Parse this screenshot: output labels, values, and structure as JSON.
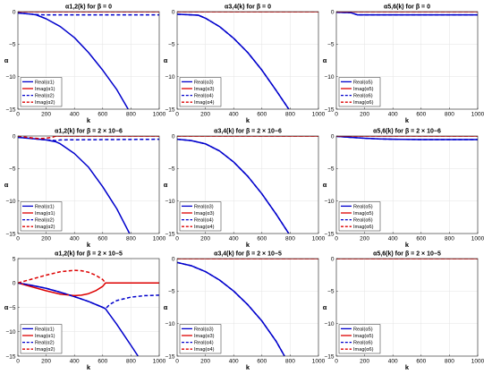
{
  "colors": {
    "real": "#0000cc",
    "imag": "#dd0000"
  },
  "chart_data": [
    {
      "type": "line",
      "title": "α1,2(k) for β = 0",
      "xlabel": "k",
      "ylabel": "α",
      "xlim": [
        0,
        1000
      ],
      "ylim": [
        -15,
        0
      ],
      "xticks": [
        0,
        200,
        400,
        600,
        800,
        1000
      ],
      "yticks": [
        0,
        -5,
        -10,
        -15
      ],
      "legend": {
        "position": "bottom-left",
        "entries": [
          "Real(α1)",
          "Imag(α1)",
          "Real(α2)",
          "Imag(α2)"
        ]
      },
      "series": [
        {
          "name": "Real(α1)",
          "color": "real",
          "dash": false,
          "x": [
            0,
            100,
            130,
            200,
            300,
            400,
            500,
            600,
            700,
            780
          ],
          "y": [
            -0.2,
            -0.4,
            -0.5,
            -1.1,
            -2.3,
            -4.0,
            -6.3,
            -9.0,
            -12.0,
            -15.0
          ]
        },
        {
          "name": "Imag(α1)",
          "color": "imag",
          "dash": false,
          "x": [
            0,
            1000
          ],
          "y": [
            0,
            0
          ]
        },
        {
          "name": "Real(α2)",
          "color": "real",
          "dash": true,
          "x": [
            0,
            100,
            130,
            200,
            1000
          ],
          "y": [
            -0.2,
            -0.4,
            -0.45,
            -0.5,
            -0.5
          ]
        },
        {
          "name": "Imag(α2)",
          "color": "imag",
          "dash": true,
          "x": [
            0,
            1000
          ],
          "y": [
            0,
            0
          ]
        }
      ]
    },
    {
      "type": "line",
      "title": "α3,4(k) for β = 0",
      "xlabel": "k",
      "ylabel": "α",
      "xlim": [
        0,
        1000
      ],
      "ylim": [
        -15,
        0
      ],
      "xticks": [
        0,
        200,
        400,
        600,
        800,
        1000
      ],
      "yticks": [
        0,
        -5,
        -10,
        -15
      ],
      "legend": {
        "position": "bottom-left",
        "entries": [
          "Real(α3)",
          "Imag(α3)",
          "Real(α4)",
          "Imag(α4)"
        ]
      },
      "series": [
        {
          "name": "Real(α3)",
          "color": "real",
          "dash": false,
          "x": [
            0,
            100,
            150,
            200,
            300,
            400,
            500,
            600,
            700,
            790
          ],
          "y": [
            -0.4,
            -0.5,
            -0.55,
            -1.0,
            -2.3,
            -4.1,
            -6.3,
            -9.0,
            -12.1,
            -15.0
          ]
        },
        {
          "name": "Imag(α3)",
          "color": "imag",
          "dash": false,
          "x": [
            0,
            1000
          ],
          "y": [
            0,
            0
          ]
        },
        {
          "name": "Real(α4)",
          "color": "real",
          "dash": true,
          "x": [
            0,
            100,
            150,
            200,
            300,
            400,
            500,
            600,
            700,
            790
          ],
          "y": [
            -0.4,
            -0.5,
            -0.55,
            -1.0,
            -2.3,
            -4.1,
            -6.3,
            -9.0,
            -12.1,
            -15.0
          ]
        },
        {
          "name": "Imag(α4)",
          "color": "imag",
          "dash": true,
          "x": [
            0,
            1000
          ],
          "y": [
            0,
            0
          ]
        }
      ]
    },
    {
      "type": "line",
      "title": "α5,6(k) for β = 0",
      "xlabel": "k",
      "ylabel": "α",
      "xlim": [
        0,
        1000
      ],
      "ylim": [
        -15,
        0
      ],
      "xticks": [
        0,
        200,
        400,
        600,
        800,
        1000
      ],
      "yticks": [
        0,
        -5,
        -10,
        -15
      ],
      "legend": {
        "position": "bottom-left",
        "entries": [
          "Real(α5)",
          "Imag(α5)",
          "Real(α6)",
          "Imag(α6)"
        ]
      },
      "series": [
        {
          "name": "Real(α5)",
          "color": "real",
          "dash": false,
          "x": [
            0,
            100,
            150,
            1000
          ],
          "y": [
            -0.1,
            -0.15,
            -0.5,
            -0.5
          ]
        },
        {
          "name": "Imag(α5)",
          "color": "imag",
          "dash": false,
          "x": [
            0,
            1000
          ],
          "y": [
            0,
            0
          ]
        },
        {
          "name": "Real(α6)",
          "color": "real",
          "dash": true,
          "x": [
            0,
            100,
            150,
            1000
          ],
          "y": [
            -0.1,
            -0.15,
            -0.5,
            -0.5
          ]
        },
        {
          "name": "Imag(α6)",
          "color": "imag",
          "dash": true,
          "x": [
            0,
            1000
          ],
          "y": [
            0,
            0
          ]
        }
      ]
    },
    {
      "type": "line",
      "title": "α1,2(k) for β = 2 × 10−6",
      "xlabel": "k",
      "ylabel": "α",
      "xlim": [
        0,
        1000
      ],
      "ylim": [
        -15,
        0
      ],
      "xticks": [
        0,
        200,
        400,
        600,
        800,
        1000
      ],
      "yticks": [
        0,
        -5,
        -10,
        -15
      ],
      "legend": {
        "position": "bottom-left",
        "entries": [
          "Real(α1)",
          "Imag(α1)",
          "Real(α2)",
          "Imag(α2)"
        ]
      },
      "series": [
        {
          "name": "Real(α1)",
          "color": "real",
          "dash": false,
          "x": [
            0,
            100,
            200,
            270,
            300,
            400,
            500,
            600,
            700,
            790
          ],
          "y": [
            -0.2,
            -0.4,
            -0.6,
            -0.9,
            -1.2,
            -2.7,
            -4.8,
            -7.8,
            -11.2,
            -15.0
          ]
        },
        {
          "name": "Imag(α1)",
          "color": "imag",
          "dash": false,
          "x": [
            0,
            100,
            150,
            200,
            250,
            270,
            1000
          ],
          "y": [
            0,
            0.3,
            0.4,
            0.35,
            0.15,
            0,
            0
          ]
        },
        {
          "name": "Real(α2)",
          "color": "real",
          "dash": true,
          "x": [
            0,
            100,
            200,
            270,
            300,
            1000
          ],
          "y": [
            -0.2,
            -0.4,
            -0.6,
            -0.7,
            -0.6,
            -0.5
          ]
        },
        {
          "name": "Imag(α2)",
          "color": "imag",
          "dash": true,
          "x": [
            0,
            100,
            150,
            200,
            250,
            270,
            1000
          ],
          "y": [
            0,
            -0.3,
            -0.4,
            -0.35,
            -0.15,
            0,
            0
          ]
        }
      ]
    },
    {
      "type": "line",
      "title": "α3,4(k) for β = 2 × 10−6",
      "xlabel": "k",
      "ylabel": "α",
      "xlim": [
        0,
        1000
      ],
      "ylim": [
        -15,
        0
      ],
      "xticks": [
        0,
        200,
        400,
        600,
        800,
        1000
      ],
      "yticks": [
        0,
        -5,
        -10,
        -15
      ],
      "legend": {
        "position": "bottom-left",
        "entries": [
          "Real(α3)",
          "Imag(α3)",
          "Real(α4)",
          "Imag(α4)"
        ]
      },
      "series": [
        {
          "name": "Real(α3)",
          "color": "real",
          "dash": false,
          "x": [
            0,
            100,
            200,
            300,
            400,
            500,
            600,
            700,
            790
          ],
          "y": [
            -0.5,
            -0.7,
            -1.2,
            -2.3,
            -4.0,
            -6.2,
            -8.9,
            -12.0,
            -15.0
          ]
        },
        {
          "name": "Imag(α3)",
          "color": "imag",
          "dash": false,
          "x": [
            0,
            1000
          ],
          "y": [
            0,
            0
          ]
        },
        {
          "name": "Real(α4)",
          "color": "real",
          "dash": true,
          "x": [
            0,
            100,
            200,
            300,
            400,
            500,
            600,
            700,
            790
          ],
          "y": [
            -0.5,
            -0.7,
            -1.2,
            -2.3,
            -4.0,
            -6.2,
            -8.9,
            -12.0,
            -15.0
          ]
        },
        {
          "name": "Imag(α4)",
          "color": "imag",
          "dash": true,
          "x": [
            0,
            1000
          ],
          "y": [
            0,
            0
          ]
        }
      ]
    },
    {
      "type": "line",
      "title": "α5,6(k) for β = 2 × 10−6",
      "xlabel": "k",
      "ylabel": "α",
      "xlim": [
        0,
        1000
      ],
      "ylim": [
        -15,
        0
      ],
      "xticks": [
        0,
        200,
        400,
        600,
        800,
        1000
      ],
      "yticks": [
        0,
        -5,
        -10,
        -15
      ],
      "legend": {
        "position": "bottom-left",
        "entries": [
          "Real(α5)",
          "Imag(α5)",
          "Real(α6)",
          "Imag(α6)"
        ]
      },
      "series": [
        {
          "name": "Real(α5)",
          "color": "real",
          "dash": false,
          "x": [
            0,
            100,
            200,
            300,
            400,
            600,
            800,
            1000
          ],
          "y": [
            -0.05,
            -0.2,
            -0.35,
            -0.45,
            -0.5,
            -0.55,
            -0.55,
            -0.55
          ]
        },
        {
          "name": "Imag(α5)",
          "color": "imag",
          "dash": false,
          "x": [
            0,
            1000
          ],
          "y": [
            0,
            0
          ]
        },
        {
          "name": "Real(α6)",
          "color": "real",
          "dash": true,
          "x": [
            0,
            100,
            200,
            300,
            400,
            600,
            800,
            1000
          ],
          "y": [
            -0.05,
            -0.2,
            -0.35,
            -0.45,
            -0.5,
            -0.55,
            -0.55,
            -0.55
          ]
        },
        {
          "name": "Imag(α6)",
          "color": "imag",
          "dash": true,
          "x": [
            0,
            1000
          ],
          "y": [
            0,
            0
          ]
        }
      ]
    },
    {
      "type": "line",
      "title": "α1,2(k) for β = 2 × 10−5",
      "xlabel": "k",
      "ylabel": "α",
      "xlim": [
        0,
        1000
      ],
      "ylim": [
        -15,
        5
      ],
      "xticks": [
        0,
        200,
        400,
        600,
        800,
        1000
      ],
      "yticks": [
        5,
        0,
        -5,
        -10,
        -15
      ],
      "legend": {
        "position": "bottom-left",
        "entries": [
          "Real(α1)",
          "Imag(α1)",
          "Real(α2)",
          "Imag(α2)"
        ]
      },
      "series": [
        {
          "name": "Real(α1)",
          "color": "real",
          "dash": false,
          "x": [
            0,
            100,
            200,
            300,
            400,
            500,
            600,
            620,
            700,
            800,
            850
          ],
          "y": [
            0,
            -0.5,
            -1.1,
            -1.9,
            -2.8,
            -3.8,
            -5.0,
            -5.3,
            -8.5,
            -12.8,
            -15.0
          ]
        },
        {
          "name": "Imag(α1)",
          "color": "imag",
          "dash": false,
          "x": [
            0,
            100,
            200,
            300,
            400,
            450,
            500,
            550,
            600,
            620,
            1000
          ],
          "y": [
            0,
            -0.8,
            -1.6,
            -2.3,
            -2.6,
            -2.5,
            -2.2,
            -1.6,
            -0.7,
            0,
            0
          ]
        },
        {
          "name": "Real(α2)",
          "color": "real",
          "dash": true,
          "x": [
            0,
            100,
            200,
            300,
            400,
            500,
            600,
            620,
            650,
            700,
            800,
            900,
            1000
          ],
          "y": [
            0,
            -0.5,
            -1.1,
            -1.9,
            -2.8,
            -3.8,
            -5.0,
            -5.3,
            -4.4,
            -3.6,
            -2.9,
            -2.6,
            -2.5
          ]
        },
        {
          "name": "Imag(α2)",
          "color": "imag",
          "dash": true,
          "x": [
            0,
            100,
            200,
            300,
            400,
            450,
            500,
            550,
            600,
            620,
            1000
          ],
          "y": [
            0,
            0.8,
            1.6,
            2.3,
            2.6,
            2.5,
            2.2,
            1.6,
            0.7,
            0,
            0
          ]
        }
      ]
    },
    {
      "type": "line",
      "title": "α3,4(k) for β = 2 × 10−5",
      "xlabel": "k",
      "ylabel": "α",
      "xlim": [
        0,
        1000
      ],
      "ylim": [
        -15,
        0
      ],
      "xticks": [
        0,
        200,
        400,
        600,
        800,
        1000
      ],
      "yticks": [
        0,
        -5,
        -10,
        -15
      ],
      "legend": {
        "position": "bottom-left",
        "entries": [
          "Real(α3)",
          "Imag(α3)",
          "Real(α4)",
          "Imag(α4)"
        ]
      },
      "series": [
        {
          "name": "Real(α3)",
          "color": "real",
          "dash": false,
          "x": [
            0,
            100,
            200,
            300,
            400,
            500,
            600,
            700,
            760
          ],
          "y": [
            -0.6,
            -1.1,
            -2.0,
            -3.3,
            -5.0,
            -7.1,
            -9.6,
            -12.7,
            -15.0
          ]
        },
        {
          "name": "Imag(α3)",
          "color": "imag",
          "dash": false,
          "x": [
            0,
            1000
          ],
          "y": [
            0,
            0
          ]
        },
        {
          "name": "Real(α4)",
          "color": "real",
          "dash": true,
          "x": [
            0,
            100,
            200,
            300,
            400,
            500,
            600,
            700,
            760
          ],
          "y": [
            -0.6,
            -1.1,
            -2.0,
            -3.3,
            -5.0,
            -7.1,
            -9.6,
            -12.7,
            -15.0
          ]
        },
        {
          "name": "Imag(α4)",
          "color": "imag",
          "dash": true,
          "x": [
            0,
            1000
          ],
          "y": [
            0,
            0
          ]
        }
      ]
    },
    {
      "type": "line",
      "title": "α5,6(k) for β = 2 × 10−5",
      "xlabel": "k",
      "ylabel": "α",
      "xlim": [
        0,
        1000
      ],
      "ylim": [
        -15,
        0
      ],
      "xticks": [
        0,
        200,
        400,
        600,
        800,
        1000
      ],
      "yticks": [
        0,
        -5,
        -10,
        -15
      ],
      "legend": {
        "position": "bottom-left",
        "entries": [
          "Real(α5)",
          "Imag(α5)",
          "Real(α6)",
          "Imag(α6)"
        ]
      },
      "series": [
        {
          "name": "Real(α5)",
          "color": "real",
          "dash": false,
          "x": [
            0,
            200,
            400,
            600,
            800,
            1000
          ],
          "y": [
            0.1,
            0.3,
            0.45,
            0.55,
            0.6,
            0.65
          ]
        },
        {
          "name": "Imag(α5)",
          "color": "imag",
          "dash": false,
          "x": [
            0,
            1000
          ],
          "y": [
            0,
            0
          ]
        },
        {
          "name": "Real(α6)",
          "color": "real",
          "dash": true,
          "x": [
            0,
            200,
            400,
            600,
            800,
            1000
          ],
          "y": [
            0.1,
            0.3,
            0.45,
            0.55,
            0.6,
            0.65
          ]
        },
        {
          "name": "Imag(α6)",
          "color": "imag",
          "dash": true,
          "x": [
            0,
            1000
          ],
          "y": [
            0,
            0
          ]
        }
      ]
    }
  ]
}
